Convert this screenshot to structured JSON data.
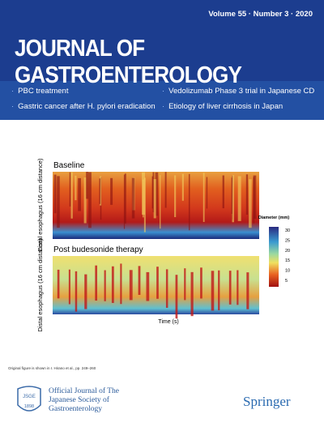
{
  "header": {
    "issue": "Volume 55 · Number 3 · 2020",
    "title": "JOURNAL OF GASTROENTEROLOGY",
    "highlights": [
      "PBC treatment",
      "Gastric cancer after H. pylori eradication",
      "Vedolizumab Phase 3 trial in Japanese CD",
      "Etiology of liver cirrhosis in Japan"
    ]
  },
  "figure": {
    "panels": [
      {
        "title": "Baseline",
        "y_label": "Distal esophagus (16 cm distance)"
      },
      {
        "title": "Post budesonide therapy",
        "y_label": "Distal esophagus (16 cm distance)"
      }
    ],
    "x_label": "Time (s)",
    "colorbar": {
      "label": "Diameter (mm)",
      "ticks": [
        30,
        25,
        20,
        15,
        10,
        5
      ]
    },
    "credit": "Original figure is shown in I. Hirano et al., pp. 249–260"
  },
  "footer": {
    "society": "Official Journal of The Japanese Society of Gastroenterology",
    "badge_top": "JSGE",
    "badge_year": "1898",
    "publisher": "Springer"
  }
}
